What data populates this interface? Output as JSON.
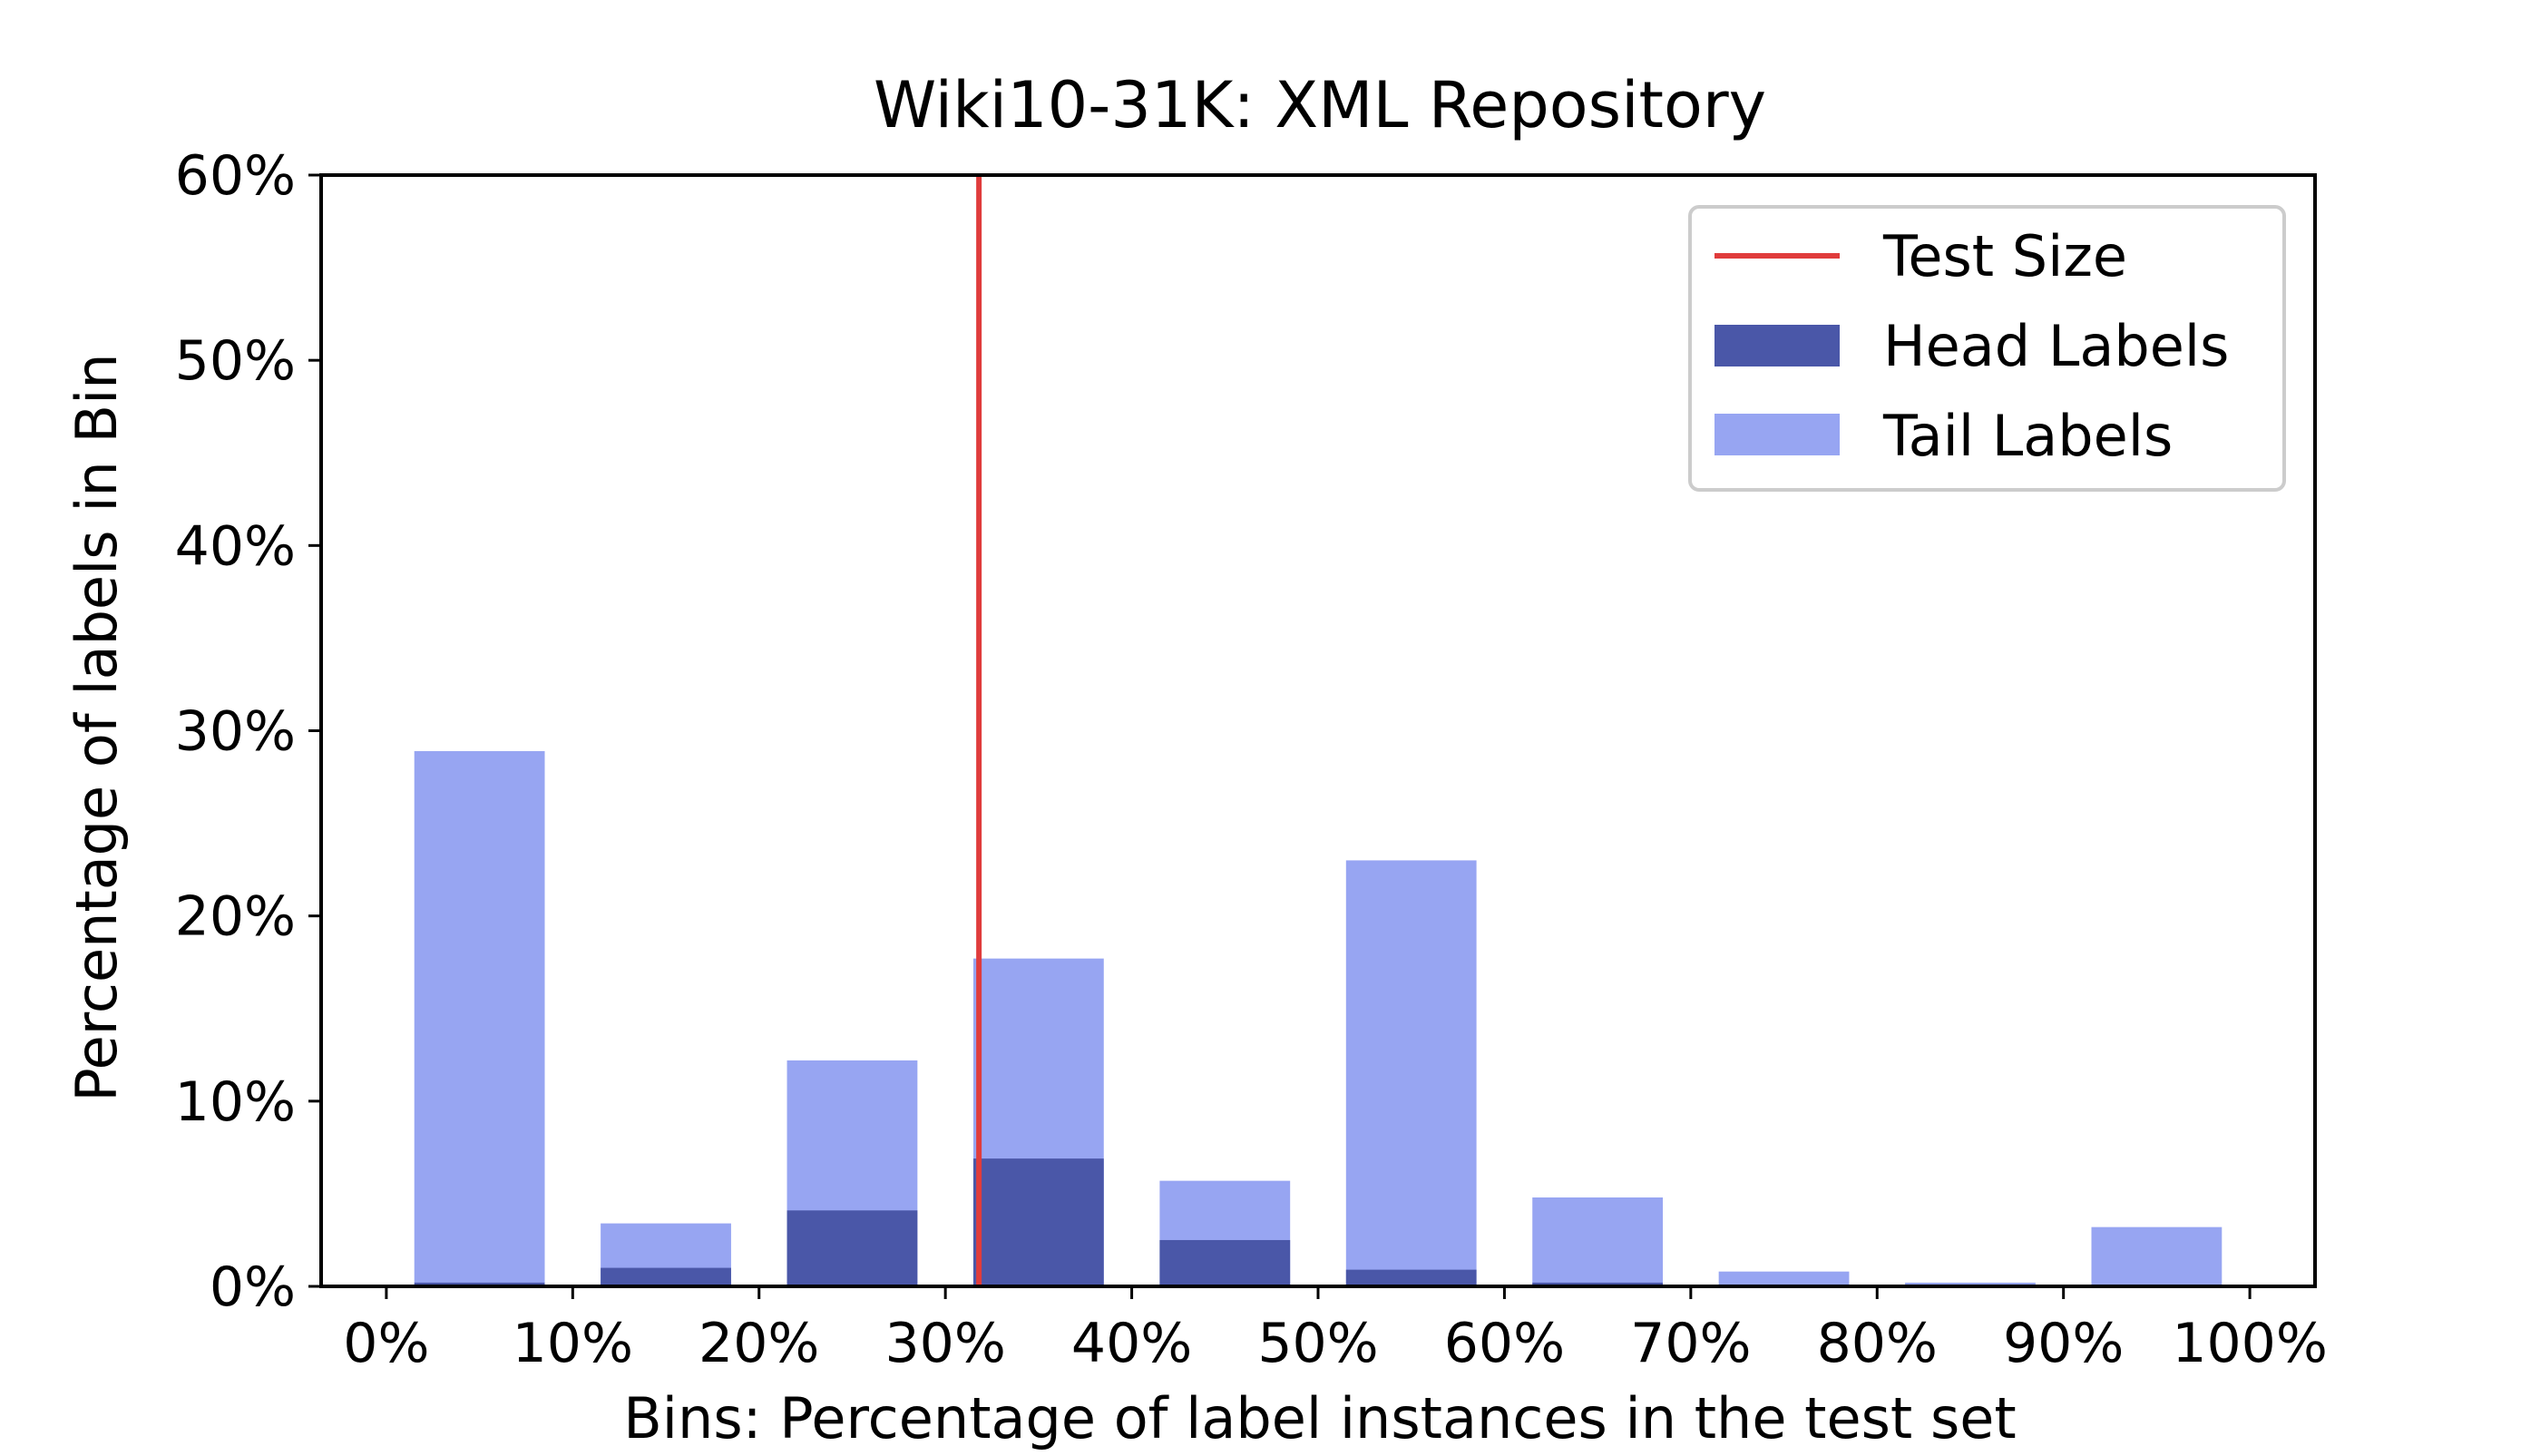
{
  "chart_data": {
    "type": "bar",
    "title": "Wiki10-31K: XML Repository",
    "xlabel": "Bins: Percentage of label instances in the test set",
    "ylabel": "Percentage of labels in Bin",
    "xlim": [
      -3.5,
      103.5
    ],
    "ylim": [
      0,
      60
    ],
    "x_ticks": [
      {
        "value": 0,
        "label": "0%"
      },
      {
        "value": 10,
        "label": "10%"
      },
      {
        "value": 20,
        "label": "20%"
      },
      {
        "value": 30,
        "label": "30%"
      },
      {
        "value": 40,
        "label": "40%"
      },
      {
        "value": 50,
        "label": "50%"
      },
      {
        "value": 60,
        "label": "60%"
      },
      {
        "value": 70,
        "label": "70%"
      },
      {
        "value": 80,
        "label": "80%"
      },
      {
        "value": 90,
        "label": "90%"
      },
      {
        "value": 100,
        "label": "100%"
      }
    ],
    "y_ticks": [
      {
        "value": 0,
        "label": "0%"
      },
      {
        "value": 10,
        "label": "10%"
      },
      {
        "value": 20,
        "label": "20%"
      },
      {
        "value": 30,
        "label": "30%"
      },
      {
        "value": 40,
        "label": "40%"
      },
      {
        "value": 50,
        "label": "50%"
      },
      {
        "value": 60,
        "label": "60%"
      }
    ],
    "bins": [
      {
        "start": 1.5,
        "end": 8.5
      },
      {
        "start": 11.5,
        "end": 18.5
      },
      {
        "start": 21.5,
        "end": 28.5
      },
      {
        "start": 31.5,
        "end": 38.5
      },
      {
        "start": 41.5,
        "end": 48.5
      },
      {
        "start": 51.5,
        "end": 58.5
      },
      {
        "start": 61.5,
        "end": 68.5
      },
      {
        "start": 71.5,
        "end": 78.5
      },
      {
        "start": 81.5,
        "end": 88.5
      },
      {
        "start": 91.5,
        "end": 98.5
      }
    ],
    "series": [
      {
        "name": "Tail Labels",
        "color": "#97a5f2",
        "values": [
          28.9,
          3.4,
          12.2,
          17.7,
          5.7,
          23.0,
          4.8,
          0.8,
          0.2,
          3.2
        ]
      },
      {
        "name": "Head Labels",
        "color": "#4a57a8",
        "values": [
          0.2,
          1.0,
          4.1,
          6.9,
          2.5,
          0.9,
          0.2,
          0.1,
          0.1,
          0.0
        ]
      }
    ],
    "reference_line": {
      "name": "Test Size",
      "x": 31.8,
      "color": "#e03c3c"
    },
    "grid": false,
    "legend_position": "top-right",
    "legend": [
      {
        "name": "Test Size",
        "kind": "line",
        "color": "#e03c3c"
      },
      {
        "name": "Head Labels",
        "kind": "patch",
        "color": "#4a57a8"
      },
      {
        "name": "Tail Labels",
        "kind": "patch",
        "color": "#97a5f2"
      }
    ]
  }
}
